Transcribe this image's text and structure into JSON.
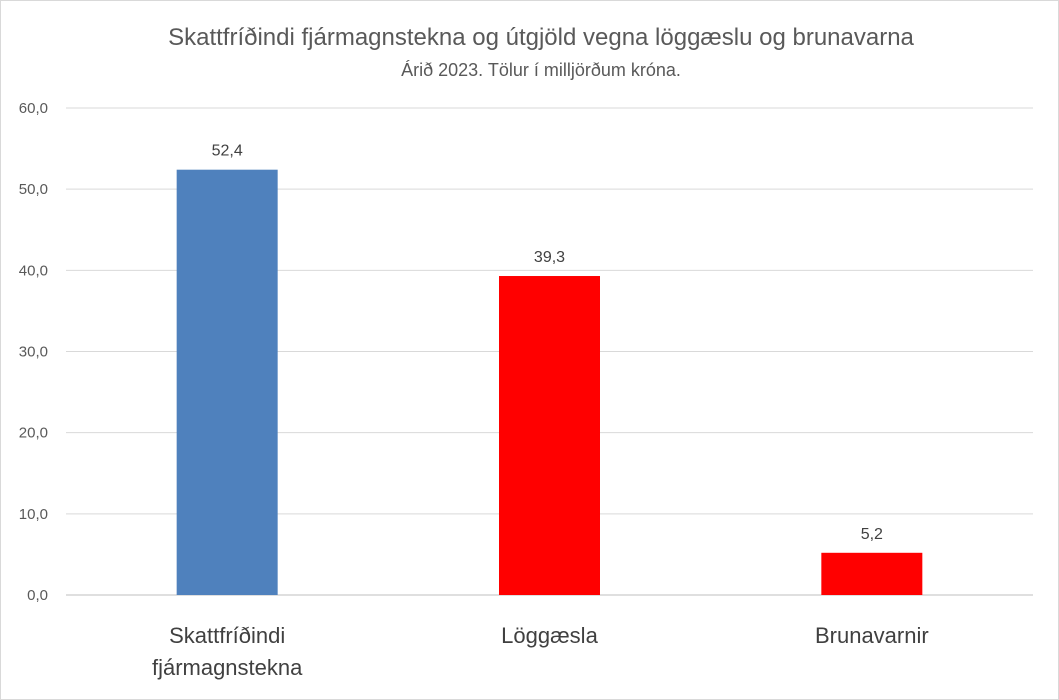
{
  "chart_data": {
    "type": "bar",
    "title": "Skattfríðindi fjármagnstekna og útgjöld vegna löggæslu og brunavarna",
    "subtitle": "Árið 2023. Tölur í milljörðum króna.",
    "xlabel": "",
    "ylabel": "",
    "ylim": [
      0,
      60
    ],
    "yticks": [
      "0,0",
      "10,0",
      "20,0",
      "30,0",
      "40,0",
      "50,0",
      "60,0"
    ],
    "grid": true,
    "legend": "none",
    "categories": [
      [
        "Skattfríðindi",
        "fjármagnstekna"
      ],
      [
        "Löggæsla"
      ],
      [
        "Brunavarnir"
      ]
    ],
    "values": [
      52.4,
      39.3,
      5.2
    ],
    "value_labels": [
      "52,4",
      "39,3",
      "5,2"
    ],
    "colors": [
      "#4f81bd",
      "#ff0000",
      "#ff0000"
    ]
  }
}
